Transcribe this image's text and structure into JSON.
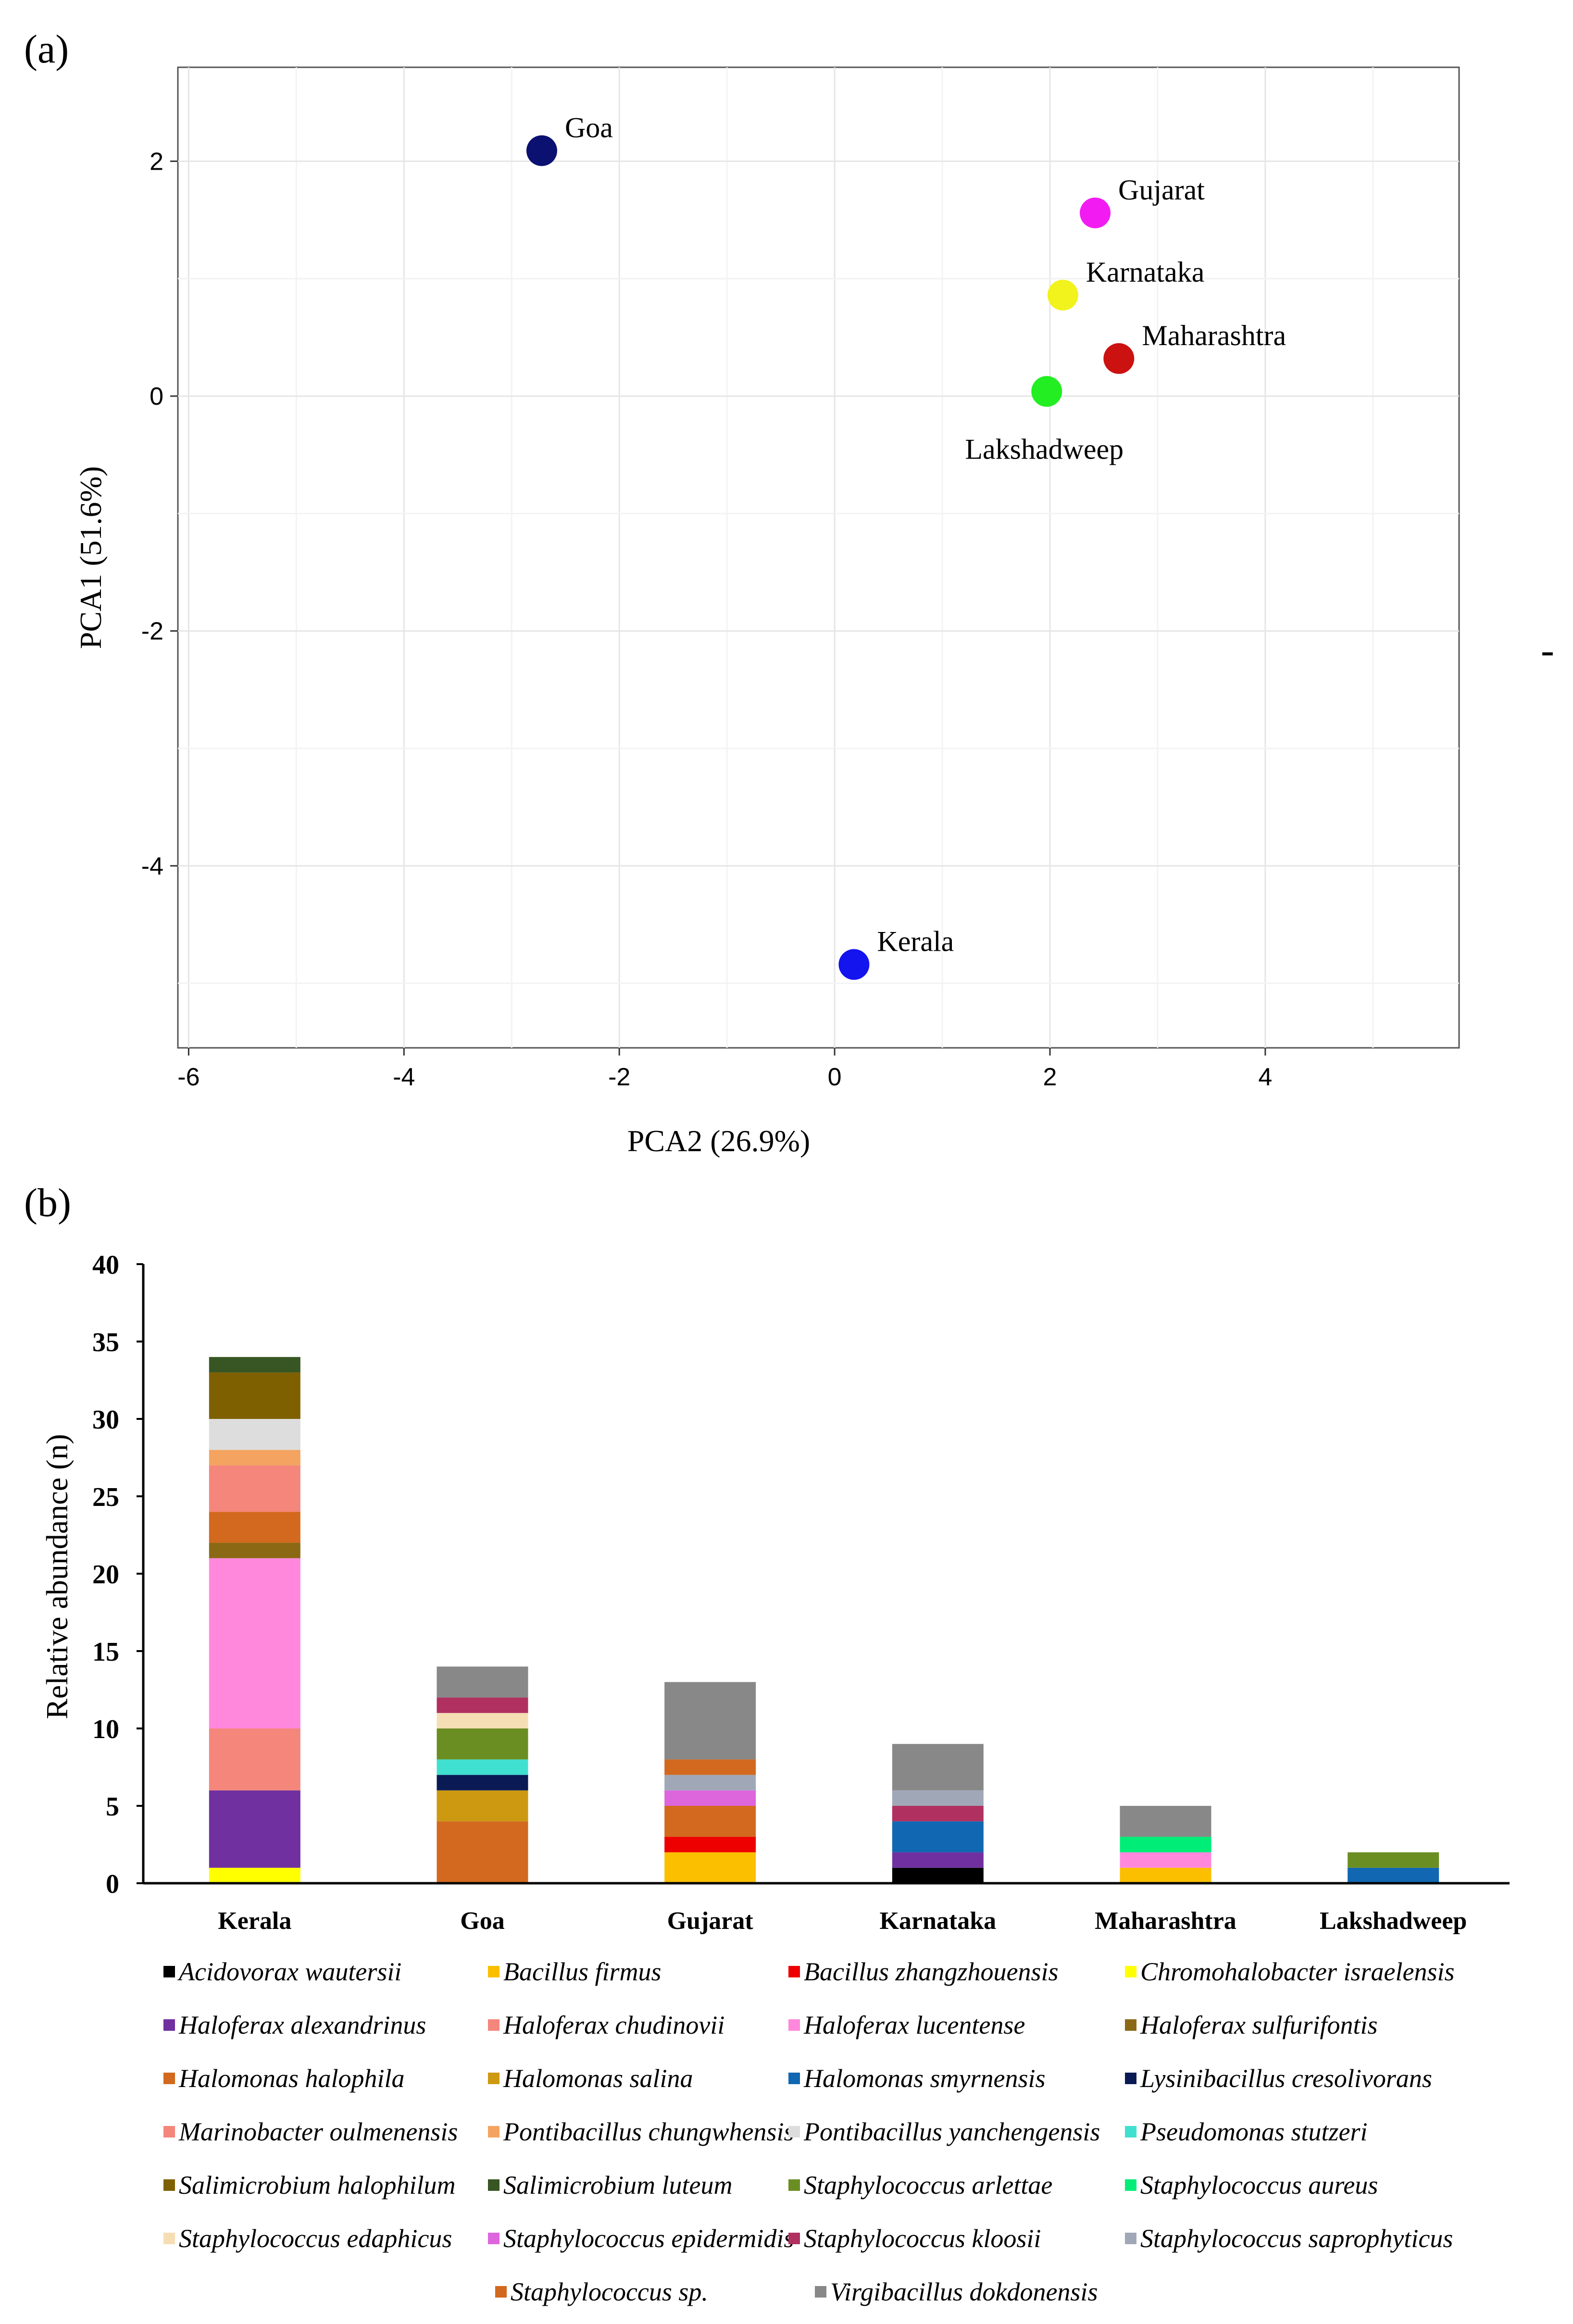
{
  "panels": {
    "a_label": "(a)",
    "b_label": "(b)",
    "side_mark": "-"
  },
  "chart_data": [
    {
      "type": "scatter",
      "xlabel": "PCA2 (26.9%)",
      "ylabel": "PCA1 (51.6%)",
      "xlim": [
        -6.1,
        5.8
      ],
      "ylim": [
        -5.55,
        2.8
      ],
      "xticks": [
        -6,
        -4,
        -2,
        0,
        2,
        4
      ],
      "xtick_labels": [
        "-6",
        "-4",
        "-2",
        "0",
        "2",
        "4"
      ],
      "yticks": [
        -4,
        -2,
        0,
        2
      ],
      "ytick_labels": [
        "-4",
        "-2",
        "0",
        "2"
      ],
      "grid": true,
      "points": [
        {
          "label": "Goa",
          "x": -2.72,
          "y": 2.09,
          "color": "#0b1170",
          "label_pos": "upper-right"
        },
        {
          "label": "Gujarat",
          "x": 2.42,
          "y": 1.56,
          "color": "#f21cf2",
          "label_pos": "upper-right"
        },
        {
          "label": "Karnataka",
          "x": 2.12,
          "y": 0.86,
          "color": "#f2f21c",
          "label_pos": "upper-right"
        },
        {
          "label": "Maharashtra",
          "x": 2.64,
          "y": 0.32,
          "color": "#cc1111",
          "label_pos": "upper-right"
        },
        {
          "label": "Lakshadweep",
          "x": 1.97,
          "y": 0.04,
          "color": "#22ee22",
          "label_pos": "below"
        },
        {
          "label": "Kerala",
          "x": 0.18,
          "y": -4.84,
          "color": "#1414ef",
          "label_pos": "upper-right"
        }
      ]
    },
    {
      "type": "bar",
      "stacked": true,
      "xlabel": "",
      "ylabel": "Relative abundance (n)",
      "ylim": [
        0,
        40
      ],
      "yticks": [
        0,
        5,
        10,
        15,
        20,
        25,
        30,
        35,
        40
      ],
      "ytick_labels": [
        "0",
        "5",
        "10",
        "15",
        "20",
        "25",
        "30",
        "35",
        "40"
      ],
      "categories": [
        "Kerala",
        "Goa",
        "Gujarat",
        "Karnataka",
        "Maharashtra",
        "Lakshadweep"
      ],
      "series": [
        {
          "name": "Acidovorax wautersii",
          "color": "#000000",
          "values": [
            0,
            0,
            0,
            1,
            0,
            0
          ]
        },
        {
          "name": "Bacillus firmus",
          "color": "#fbbf00",
          "values": [
            0,
            0,
            2,
            0,
            1,
            0
          ]
        },
        {
          "name": "Bacillus zhangzhouensis",
          "color": "#ee0000",
          "values": [
            0,
            0,
            1,
            0,
            0,
            0
          ]
        },
        {
          "name": "Chromohalobacter israelensis",
          "color": "#ffff00",
          "values": [
            1,
            0,
            0,
            0,
            0,
            0
          ]
        },
        {
          "name": "Haloferax alexandrinus",
          "color": "#7030a0",
          "values": [
            5,
            0,
            0,
            1,
            0,
            0
          ]
        },
        {
          "name": "Haloferax chudinovii",
          "color": "#f4867c",
          "values": [
            4,
            0,
            0,
            0,
            0,
            0
          ]
        },
        {
          "name": "Haloferax lucentense",
          "color": "#ff88dd",
          "values": [
            11,
            0,
            0,
            0,
            1,
            0
          ]
        },
        {
          "name": "Haloferax sulfurifontis",
          "color": "#8b6914",
          "values": [
            1,
            0,
            0,
            0,
            0,
            0
          ]
        },
        {
          "name": "Halomonas halophila",
          "color": "#d2691e",
          "values": [
            2,
            4,
            2,
            0,
            0,
            0
          ]
        },
        {
          "name": "Halomonas salina",
          "color": "#cc9911",
          "values": [
            0,
            2,
            0,
            0,
            0,
            0
          ]
        },
        {
          "name": "Halomonas smyrnensis",
          "color": "#1167b1",
          "values": [
            0,
            0,
            0,
            2,
            0,
            1
          ]
        },
        {
          "name": "Lysinibacillus cresolivorans",
          "color": "#0a1a55",
          "values": [
            0,
            1,
            0,
            0,
            0,
            0
          ]
        },
        {
          "name": "Marinobacter oulmenensis",
          "color": "#f4867c",
          "values": [
            3,
            0,
            0,
            0,
            0,
            0
          ]
        },
        {
          "name": "Pontibacillus chungwhensis",
          "color": "#f4a460",
          "values": [
            1,
            0,
            0,
            0,
            0,
            0
          ]
        },
        {
          "name": "Pontibacillus yanchengensis",
          "color": "#dddddd",
          "values": [
            2,
            0,
            0,
            0,
            0,
            0
          ]
        },
        {
          "name": "Pseudomonas stutzeri",
          "color": "#40e0d0",
          "values": [
            0,
            1,
            0,
            0,
            0,
            0
          ]
        },
        {
          "name": "Salimicrobium halophilum",
          "color": "#7f6000",
          "values": [
            3,
            0,
            0,
            0,
            0,
            0
          ]
        },
        {
          "name": "Salimicrobium luteum",
          "color": "#375623",
          "values": [
            1,
            0,
            0,
            0,
            0,
            0
          ]
        },
        {
          "name": "Staphylococcus arlettae",
          "color": "#6b8e23",
          "values": [
            0,
            2,
            0,
            0,
            0,
            1
          ]
        },
        {
          "name": "Staphylococcus aureus",
          "color": "#00ee77",
          "values": [
            0,
            0,
            0,
            0,
            1,
            0
          ]
        },
        {
          "name": "Staphylococcus edaphicus",
          "color": "#f5deb3",
          "values": [
            0,
            1,
            0,
            0,
            0,
            0
          ]
        },
        {
          "name": "Staphylococcus epidermidis",
          "color": "#dd66dd",
          "values": [
            0,
            0,
            1,
            0,
            0,
            0
          ]
        },
        {
          "name": "Staphylococcus kloosii",
          "color": "#b03060",
          "values": [
            0,
            1,
            0,
            1,
            0,
            0
          ]
        },
        {
          "name": "Staphylococcus saprophyticus",
          "color": "#a0a8b8",
          "values": [
            0,
            0,
            1,
            1,
            0,
            0
          ]
        },
        {
          "name": "Staphylococcus sp.",
          "color": "#d2691e",
          "values": [
            0,
            0,
            1,
            0,
            0,
            0
          ]
        },
        {
          "name": "Virgibacillus dokdonensis",
          "color": "#888888",
          "values": [
            0,
            2,
            5,
            3,
            2,
            0
          ]
        }
      ]
    }
  ]
}
